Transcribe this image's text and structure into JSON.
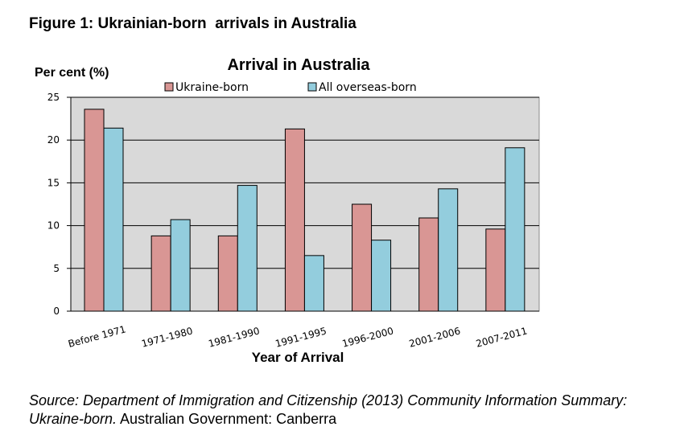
{
  "figure_title": "Figure 1: Ukrainian-born  arrivals in Australia",
  "source": {
    "part1": "Source: Department of Immigration and Citizenship (2013) Community Information Summary: Ukraine-born.",
    "part2": " Australian Government: Canberra"
  },
  "colors": {
    "ukraine": "#d99694",
    "overseas": "#93cddd",
    "plot_bg": "#d9d9d9",
    "bar_stroke": "#000000"
  },
  "chart_data": {
    "type": "bar",
    "title": "Arrival in Australia",
    "ylabel": "Per cent (%)",
    "xlabel": "Year of Arrival",
    "ylim": [
      0,
      25
    ],
    "yticks": [
      "0",
      "5",
      "10",
      "15",
      "20",
      "25"
    ],
    "grid": true,
    "legend_position": "top",
    "categories": [
      "Before 1971",
      "1971-1980",
      "1981-1990",
      "1991-1995",
      "1996-2000",
      "2001-2006",
      "2007-2011"
    ],
    "series": [
      {
        "name": "Ukraine-born",
        "values": [
          23.6,
          8.8,
          8.8,
          21.3,
          12.5,
          10.9,
          9.6
        ]
      },
      {
        "name": "All overseas-born",
        "values": [
          21.4,
          10.7,
          14.7,
          6.5,
          8.3,
          14.3,
          19.1
        ]
      }
    ]
  }
}
